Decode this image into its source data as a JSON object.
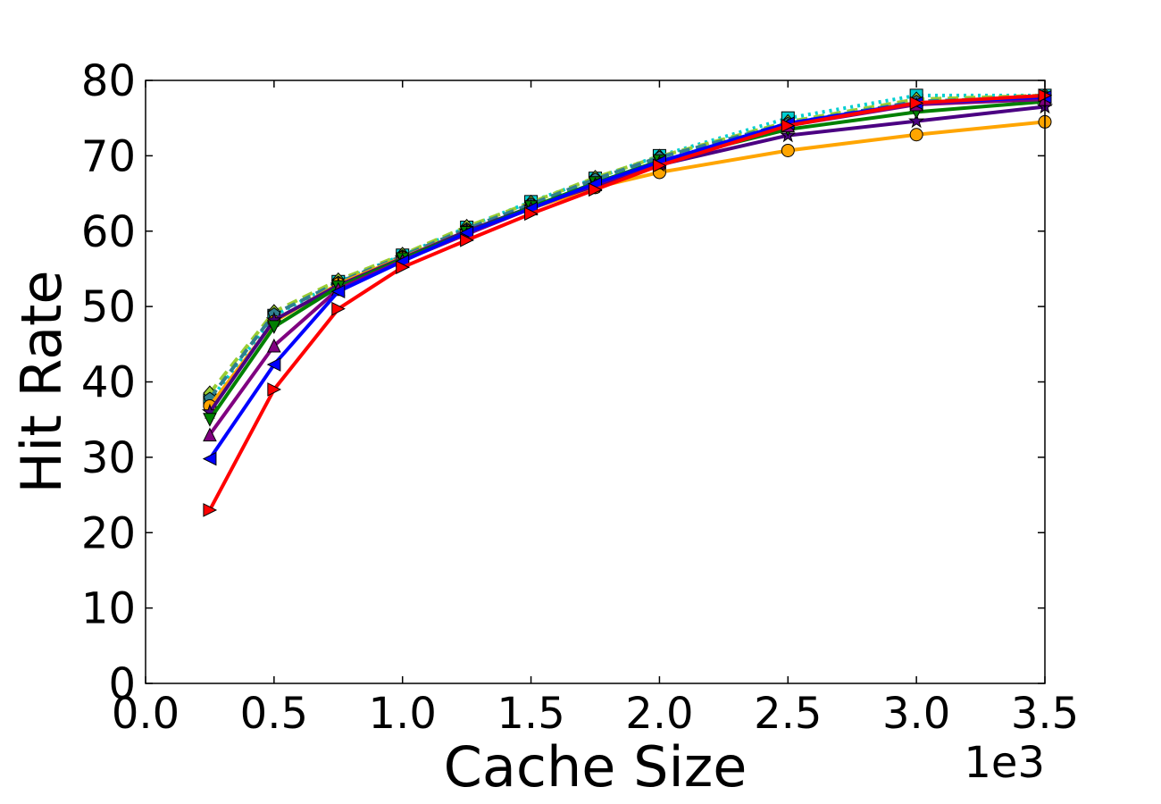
{
  "chart_data": {
    "type": "line",
    "title": "",
    "xlabel": "Cache Size",
    "ylabel": "Hit Rate",
    "x_offset_label": "1e3",
    "xlim": [
      0.0,
      3.5
    ],
    "ylim": [
      0,
      80
    ],
    "x_ticks": [
      "0.0",
      "0.5",
      "1.0",
      "1.5",
      "2.0",
      "2.5",
      "3.0",
      "3.5"
    ],
    "y_ticks": [
      "0",
      "10",
      "20",
      "30",
      "40",
      "50",
      "60",
      "70",
      "80"
    ],
    "grid": false,
    "legend": "none",
    "series": [
      {
        "color": "#00ced1",
        "marker": "square",
        "dash": "dotted",
        "x": [
          0.25,
          0.5,
          0.75,
          1.0,
          1.25,
          1.5,
          1.75,
          2.0,
          2.5,
          3.0,
          3.5
        ],
        "y": [
          37.5,
          48.8,
          53.3,
          56.8,
          60.5,
          63.9,
          67.0,
          70.0,
          75.0,
          78.0,
          78.0
        ]
      },
      {
        "color": "#9acd32",
        "marker": "diamond",
        "dash": "dashed",
        "x": [
          0.25,
          0.5,
          0.75,
          1.0,
          1.25,
          1.5,
          1.75,
          2.0,
          2.5,
          3.0,
          3.5
        ],
        "y": [
          38.5,
          49.3,
          53.5,
          56.9,
          60.6,
          63.8,
          67.1,
          69.9,
          74.5,
          77.5,
          78.0
        ]
      },
      {
        "color": "#2f7f8f",
        "marker": "pentagon",
        "dash": "dashed",
        "x": [
          0.25,
          0.5,
          0.75,
          1.0,
          1.25,
          1.5,
          1.75,
          2.0,
          2.5,
          3.0,
          3.5
        ],
        "y": [
          37.8,
          49.0,
          53.2,
          56.7,
          60.3,
          63.6,
          66.9,
          69.8,
          74.3,
          77.2,
          77.8
        ]
      },
      {
        "color": "#ffa500",
        "marker": "circle",
        "dash": "solid",
        "x": [
          0.25,
          0.5,
          0.75,
          1.0,
          1.25,
          1.5,
          1.75,
          2.0,
          2.5,
          3.0,
          3.5
        ],
        "y": [
          36.8,
          48.0,
          53.0,
          56.5,
          60.0,
          63.0,
          65.8,
          67.8,
          70.7,
          72.8,
          74.5
        ]
      },
      {
        "color": "#4b0082",
        "marker": "star",
        "dash": "solid",
        "x": [
          0.25,
          0.5,
          0.75,
          1.0,
          1.25,
          1.5,
          1.75,
          2.0,
          2.5,
          3.0,
          3.5
        ],
        "y": [
          36.0,
          48.2,
          52.8,
          56.4,
          60.0,
          63.2,
          66.0,
          68.8,
          72.7,
          74.6,
          76.5
        ]
      },
      {
        "color": "#008000",
        "marker": "triangle-down",
        "dash": "solid",
        "x": [
          0.25,
          0.5,
          0.75,
          1.0,
          1.25,
          1.5,
          1.75,
          2.0,
          2.5,
          3.0,
          3.5
        ],
        "y": [
          35.0,
          47.3,
          52.6,
          56.3,
          59.8,
          63.2,
          66.4,
          69.3,
          73.5,
          75.8,
          77.2
        ]
      },
      {
        "color": "#800080",
        "marker": "triangle-up",
        "dash": "solid",
        "x": [
          0.25,
          0.5,
          0.75,
          1.0,
          1.25,
          1.5,
          1.75,
          2.0,
          2.5,
          3.0,
          3.5
        ],
        "y": [
          33.0,
          44.8,
          52.3,
          56.1,
          59.6,
          63.0,
          66.2,
          69.1,
          74.0,
          76.8,
          77.5
        ]
      },
      {
        "color": "#0000ff",
        "marker": "triangle-left",
        "dash": "solid",
        "x": [
          0.25,
          0.5,
          0.75,
          1.0,
          1.25,
          1.5,
          1.75,
          2.0,
          2.5,
          3.0,
          3.5
        ],
        "y": [
          29.8,
          42.3,
          52.0,
          56.0,
          59.8,
          63.0,
          66.3,
          69.2,
          74.3,
          77.0,
          77.8
        ]
      },
      {
        "color": "#ff0000",
        "marker": "triangle-right",
        "dash": "solid",
        "x": [
          0.25,
          0.5,
          0.75,
          1.0,
          1.25,
          1.5,
          1.75,
          2.0,
          2.5,
          3.0,
          3.5
        ],
        "y": [
          23.0,
          39.0,
          49.7,
          55.2,
          58.8,
          62.3,
          65.5,
          68.7,
          74.0,
          77.0,
          78.0
        ]
      }
    ]
  }
}
